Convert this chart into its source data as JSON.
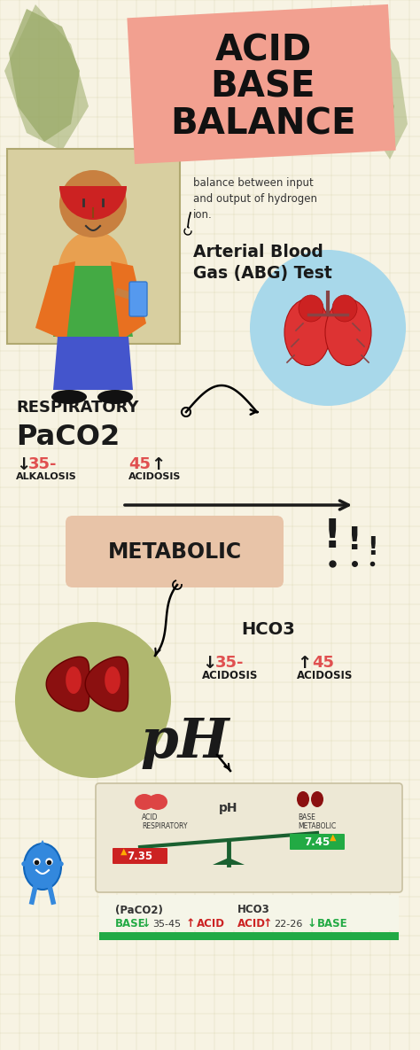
{
  "bg_color": "#f7f3e3",
  "grid_color": "#d0cca0",
  "title_bg": "#f2a090",
  "title_text": "ACID\nBASE\nBALANCE",
  "title_color": "#111111",
  "leaf_color": "#9aaa68",
  "respiratory_label": "RESPIRATORY",
  "paco2_label": "PaCO2",
  "alkalosis_label": "ALKALOSIS",
  "acidosis_label": "ACIDOSIS",
  "accent_color": "#e05050",
  "metabolic_bg": "#e8c4a8",
  "metabolic_label": "METABOLIC",
  "hco3_label": "HCO3",
  "hco3_down_label": "ACIDOSIS",
  "hco3_up_label": "ACIDOSIS",
  "lung_circle_color": "#a8d8ea",
  "kidney_circle_color": "#b0b870",
  "ph_label": "pH",
  "note_text": "balance between input\nand output of hydrogen\nion.",
  "abg_text": "Arterial Blood\nGas (ABG) Test",
  "bottom_paco2_label": "(PaCO2)",
  "bottom_hco3_label": "HCO3",
  "ph_scale_left": "7.35",
  "ph_scale_right": "7.45",
  "green_color": "#22aa44",
  "red_color": "#cc2222",
  "dark_color": "#1a1a1a",
  "gray_bg": "#e8e4d0"
}
